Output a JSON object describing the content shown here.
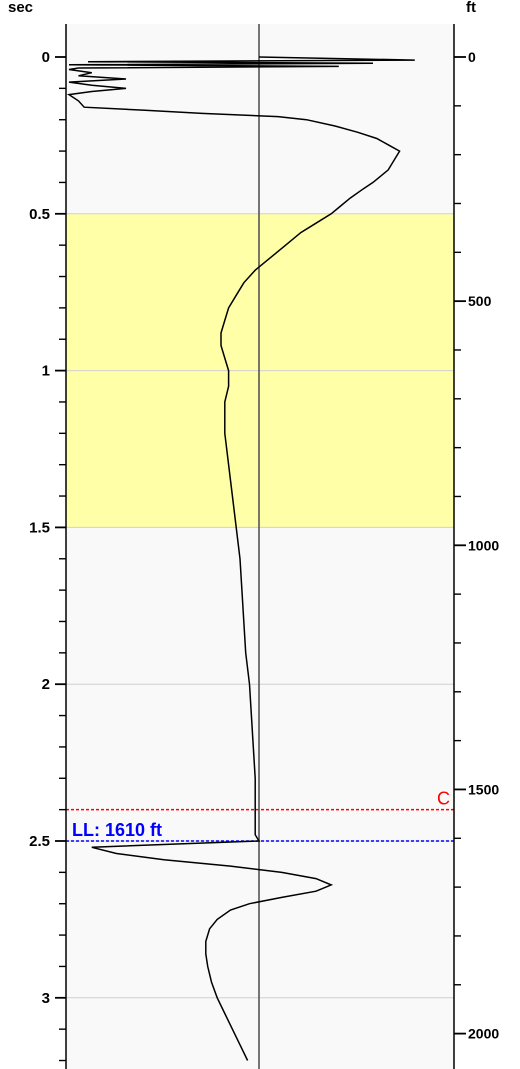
{
  "chart_data": {
    "type": "line",
    "title": "",
    "left_axis": {
      "label": "sec",
      "range": [
        0,
        3.2
      ],
      "inverted": true,
      "major_ticks": [
        0,
        0.5,
        1,
        1.5,
        2,
        2.5,
        3
      ],
      "major_tick_labels": [
        "0",
        "0.5",
        "1",
        "1.5",
        "2",
        "2.5",
        "3"
      ],
      "minor_step": 0.1
    },
    "right_axis": {
      "label": "ft",
      "range": [
        0,
        2060
      ],
      "major_ticks": [
        0,
        500,
        1000,
        1500,
        2000
      ],
      "major_tick_labels": [
        "0",
        "500",
        "1000",
        "1500",
        "2000"
      ],
      "minor_step": 100
    },
    "grid": true,
    "highlight_band": {
      "from": 0.5,
      "to": 1.5,
      "color": "#ffffa8"
    },
    "markers": [
      {
        "label": "C",
        "value": 2.4,
        "color": "#ff0000",
        "style": "dotted"
      },
      {
        "label": "LL: 1610 ft",
        "value": 2.5,
        "color": "#0000ff",
        "style": "dotted"
      }
    ],
    "series": [
      {
        "x": [
          0.0,
          0.01,
          0.015,
          0.02,
          0.025,
          0.03,
          0.035,
          0.04,
          0.05,
          0.06,
          0.07,
          0.08,
          0.09,
          0.1,
          0.11,
          0.12,
          0.14,
          0.16,
          0.17,
          0.18,
          0.19,
          0.2,
          0.22,
          0.24,
          0.26,
          0.28,
          0.3,
          0.32,
          0.34,
          0.36,
          0.38,
          0.4,
          0.42,
          0.45,
          0.48,
          0.5,
          0.53,
          0.56,
          0.6,
          0.64,
          0.68,
          0.72,
          0.76,
          0.8,
          0.84,
          0.88,
          0.92,
          0.96,
          1.0,
          1.05,
          1.1,
          1.15,
          1.2,
          1.25,
          1.3,
          1.35,
          1.4,
          1.45,
          1.5,
          1.55,
          1.6,
          1.7,
          1.8,
          1.9,
          2.0,
          2.1,
          2.2,
          2.3,
          2.4,
          2.45,
          2.48,
          2.5,
          2.51,
          2.52,
          2.54,
          2.56,
          2.58,
          2.6,
          2.62,
          2.64,
          2.66,
          2.68,
          2.7,
          2.72,
          2.75,
          2.78,
          2.82,
          2.86,
          2.9,
          2.95,
          3.0,
          3.05,
          3.1,
          3.15,
          3.2
        ],
        "values": [
          0.0,
          0.82,
          -0.9,
          0.6,
          -1.0,
          0.42,
          -0.95,
          -1.0,
          -0.88,
          -0.95,
          -0.7,
          -1.0,
          -0.88,
          -0.7,
          -0.88,
          -1.0,
          -0.95,
          -0.92,
          -0.6,
          -0.3,
          0.1,
          0.25,
          0.4,
          0.52,
          0.62,
          0.68,
          0.74,
          0.72,
          0.7,
          0.68,
          0.64,
          0.6,
          0.55,
          0.48,
          0.42,
          0.38,
          0.3,
          0.22,
          0.14,
          0.06,
          -0.02,
          -0.08,
          -0.12,
          -0.16,
          -0.18,
          -0.2,
          -0.2,
          -0.18,
          -0.16,
          -0.16,
          -0.18,
          -0.18,
          -0.18,
          -0.17,
          -0.16,
          -0.15,
          -0.14,
          -0.13,
          -0.12,
          -0.11,
          -0.1,
          -0.09,
          -0.08,
          -0.07,
          -0.05,
          -0.04,
          -0.03,
          -0.02,
          -0.02,
          -0.02,
          -0.02,
          0.0,
          -0.45,
          -0.88,
          -0.75,
          -0.5,
          -0.15,
          0.12,
          0.3,
          0.38,
          0.3,
          0.12,
          -0.05,
          -0.15,
          -0.22,
          -0.26,
          -0.28,
          -0.28,
          -0.27,
          -0.25,
          -0.22,
          -0.18,
          -0.14,
          -0.1,
          -0.06
        ]
      }
    ]
  }
}
